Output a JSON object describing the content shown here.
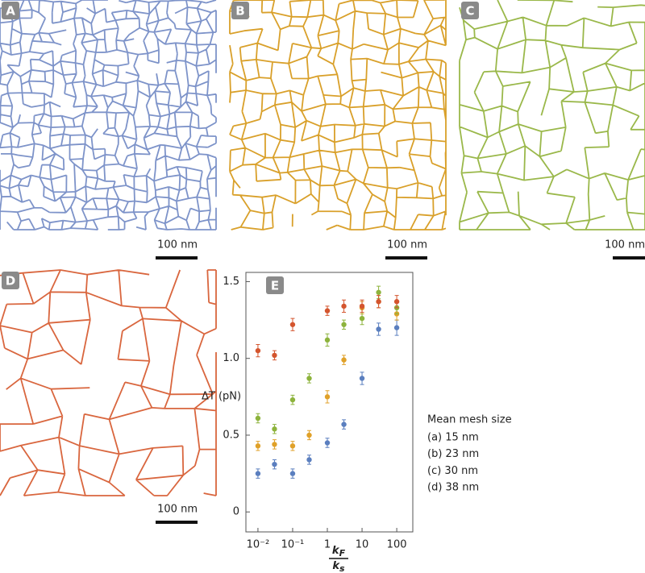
{
  "panels": [
    {
      "label": "A",
      "scale_bar": "100 nm",
      "color": "#7d93c9"
    },
    {
      "label": "B",
      "scale_bar": "100 nm",
      "color": "#d9a02a"
    },
    {
      "label": "C",
      "scale_bar": "100 nm",
      "color": "#9ab84a"
    },
    {
      "label": "D",
      "scale_bar": "100 nm",
      "color": "#d9663e"
    }
  ],
  "chart_data": {
    "type": "scatter",
    "panel_label": "E",
    "ylabel": "ΔT (pN)",
    "xlabel": {
      "numerator": {
        "main": "k",
        "sub": "F"
      },
      "denominator": {
        "main": "k",
        "sub": "s"
      }
    },
    "log_x": true,
    "x": [
      0.01,
      0.03,
      0.1,
      0.3,
      1,
      3,
      10,
      30,
      100
    ],
    "xlim": [
      0.0045,
      290
    ],
    "ylim": [
      -0.13,
      1.56
    ],
    "xticks": [
      {
        "value": 0.01,
        "label": "10⁻²"
      },
      {
        "value": 0.1,
        "label": "10⁻¹"
      },
      1,
      10,
      100
    ],
    "yticks": [
      0,
      0.5,
      {
        "value": 1,
        "label": "1.0"
      },
      1.5
    ],
    "legend_title": "Mean mesh size",
    "series": [
      {
        "name": "(a) 15 nm",
        "color": "#5b7fbf",
        "values": [
          0.25,
          0.31,
          0.25,
          0.34,
          0.45,
          0.57,
          0.87,
          1.19,
          1.2
        ],
        "errors": [
          0.03,
          0.03,
          0.03,
          0.03,
          0.03,
          0.03,
          0.04,
          0.04,
          0.05
        ]
      },
      {
        "name": "(b) 23 nm",
        "color": "#e0a129",
        "values": [
          0.43,
          0.44,
          0.43,
          0.5,
          0.75,
          0.99,
          1.33,
          1.37,
          1.29
        ],
        "errors": [
          0.03,
          0.03,
          0.03,
          0.03,
          0.04,
          0.03,
          0.04,
          0.04,
          0.04
        ]
      },
      {
        "name": "(c) 30 nm",
        "color": "#8db33c",
        "values": [
          0.61,
          0.54,
          0.73,
          0.87,
          1.12,
          1.22,
          1.26,
          1.43,
          1.33
        ],
        "errors": [
          0.03,
          0.03,
          0.03,
          0.03,
          0.04,
          0.03,
          0.04,
          0.04,
          0.04
        ]
      },
      {
        "name": "(d) 38 nm",
        "color": "#d4552e",
        "values": [
          1.05,
          1.02,
          1.22,
          null,
          1.31,
          1.34,
          1.34,
          1.37,
          1.37
        ],
        "errors": [
          0.04,
          0.03,
          0.04,
          null,
          0.03,
          0.04,
          0.04,
          0.04,
          0.04
        ]
      }
    ]
  }
}
